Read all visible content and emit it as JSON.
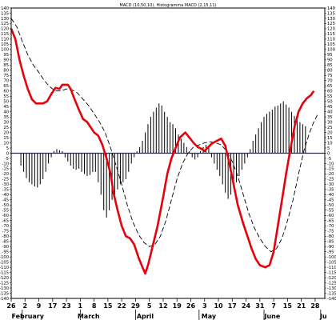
{
  "chart_data": {
    "type": "line",
    "title": "MACD (10,50,10), Histogramma MACD (2,15,11)",
    "ylim": [
      -140,
      140
    ],
    "ytick_step": 5,
    "dates": [
      "26",
      "2",
      "9",
      "17",
      "23",
      "1",
      "8",
      "15",
      "22",
      "29",
      "5",
      "12",
      "19",
      "26",
      "3",
      "10",
      "17",
      "24",
      "31",
      "7",
      "15",
      "21",
      "28"
    ],
    "months": [
      "February",
      "March",
      "April",
      "May",
      "June",
      "Ju"
    ],
    "x_range": [
      0,
      22.7
    ],
    "macd": [
      [
        0.0,
        120
      ],
      [
        0.3,
        110
      ],
      [
        0.6,
        90
      ],
      [
        0.9,
        75
      ],
      [
        1.2,
        62
      ],
      [
        1.5,
        52
      ],
      [
        1.8,
        48
      ],
      [
        2.3,
        48
      ],
      [
        2.6,
        50
      ],
      [
        2.9,
        57
      ],
      [
        3.2,
        63
      ],
      [
        3.5,
        62
      ],
      [
        3.7,
        66
      ],
      [
        4.1,
        66
      ],
      [
        4.3,
        62
      ],
      [
        4.5,
        55
      ],
      [
        4.9,
        42
      ],
      [
        5.2,
        33
      ],
      [
        5.5,
        30
      ],
      [
        5.8,
        24
      ],
      [
        6.0,
        20
      ],
      [
        6.3,
        17
      ],
      [
        6.6,
        8
      ],
      [
        6.9,
        -5
      ],
      [
        7.2,
        -20
      ],
      [
        7.4,
        -38
      ],
      [
        7.7,
        -55
      ],
      [
        8.0,
        -70
      ],
      [
        8.3,
        -80
      ],
      [
        8.6,
        -82
      ],
      [
        8.9,
        -88
      ],
      [
        9.2,
        -100
      ],
      [
        9.5,
        -110
      ],
      [
        9.7,
        -116
      ],
      [
        9.9,
        -108
      ],
      [
        10.2,
        -92
      ],
      [
        10.6,
        -70
      ],
      [
        11.0,
        -42
      ],
      [
        11.3,
        -20
      ],
      [
        11.6,
        -5
      ],
      [
        11.9,
        5
      ],
      [
        12.2,
        15
      ],
      [
        12.6,
        20
      ],
      [
        12.9,
        15
      ],
      [
        13.2,
        10
      ],
      [
        13.5,
        6
      ],
      [
        13.8,
        4
      ],
      [
        14.0,
        2
      ],
      [
        14.2,
        5
      ],
      [
        14.5,
        9
      ],
      [
        14.9,
        12
      ],
      [
        15.2,
        14
      ],
      [
        15.5,
        7
      ],
      [
        15.8,
        -10
      ],
      [
        16.1,
        -30
      ],
      [
        16.4,
        -50
      ],
      [
        16.8,
        -68
      ],
      [
        17.1,
        -80
      ],
      [
        17.4,
        -92
      ],
      [
        17.7,
        -102
      ],
      [
        18.0,
        -108
      ],
      [
        18.4,
        -110
      ],
      [
        18.7,
        -108
      ],
      [
        19.0,
        -95
      ],
      [
        19.3,
        -70
      ],
      [
        19.6,
        -45
      ],
      [
        19.9,
        -20
      ],
      [
        20.2,
        3
      ],
      [
        20.5,
        25
      ],
      [
        20.8,
        40
      ],
      [
        21.1,
        48
      ],
      [
        21.4,
        53
      ],
      [
        21.7,
        56
      ],
      [
        21.9,
        60
      ]
    ],
    "signal": [
      [
        0.0,
        130
      ],
      [
        0.4,
        122
      ],
      [
        0.8,
        108
      ],
      [
        1.2,
        95
      ],
      [
        1.6,
        85
      ],
      [
        2.0,
        78
      ],
      [
        2.4,
        70
      ],
      [
        2.8,
        64
      ],
      [
        3.2,
        60
      ],
      [
        3.6,
        60
      ],
      [
        4.0,
        62
      ],
      [
        4.4,
        61
      ],
      [
        4.8,
        58
      ],
      [
        5.2,
        52
      ],
      [
        5.6,
        46
      ],
      [
        6.0,
        38
      ],
      [
        6.4,
        30
      ],
      [
        6.8,
        20
      ],
      [
        7.2,
        5
      ],
      [
        7.6,
        -12
      ],
      [
        8.0,
        -30
      ],
      [
        8.4,
        -50
      ],
      [
        8.8,
        -66
      ],
      [
        9.2,
        -78
      ],
      [
        9.6,
        -86
      ],
      [
        10.0,
        -90
      ],
      [
        10.4,
        -88
      ],
      [
        10.8,
        -80
      ],
      [
        11.2,
        -65
      ],
      [
        11.6,
        -45
      ],
      [
        12.0,
        -25
      ],
      [
        12.4,
        -10
      ],
      [
        12.8,
        0
      ],
      [
        13.2,
        6
      ],
      [
        13.6,
        8
      ],
      [
        14.0,
        10
      ],
      [
        14.4,
        11
      ],
      [
        14.8,
        10
      ],
      [
        15.2,
        8
      ],
      [
        15.6,
        2
      ],
      [
        16.0,
        -8
      ],
      [
        16.4,
        -22
      ],
      [
        16.8,
        -40
      ],
      [
        17.2,
        -58
      ],
      [
        17.6,
        -72
      ],
      [
        18.0,
        -82
      ],
      [
        18.4,
        -90
      ],
      [
        18.8,
        -95
      ],
      [
        19.2,
        -92
      ],
      [
        19.6,
        -82
      ],
      [
        20.0,
        -65
      ],
      [
        20.4,
        -45
      ],
      [
        20.8,
        -20
      ],
      [
        21.2,
        3
      ],
      [
        21.6,
        20
      ],
      [
        21.9,
        30
      ],
      [
        22.2,
        38
      ]
    ],
    "histogram": [
      [
        0.7,
        -12
      ],
      [
        0.9,
        -18
      ],
      [
        1.1,
        -24
      ],
      [
        1.3,
        -28
      ],
      [
        1.5,
        -30
      ],
      [
        1.7,
        -32
      ],
      [
        1.9,
        -33
      ],
      [
        2.1,
        -30
      ],
      [
        2.3,
        -25
      ],
      [
        2.5,
        -18
      ],
      [
        2.7,
        -10
      ],
      [
        2.9,
        -4
      ],
      [
        3.1,
        2
      ],
      [
        3.3,
        4
      ],
      [
        3.5,
        3
      ],
      [
        3.7,
        2
      ],
      [
        3.9,
        -4
      ],
      [
        4.1,
        -8
      ],
      [
        4.3,
        -12
      ],
      [
        4.5,
        -15
      ],
      [
        4.7,
        -16
      ],
      [
        4.9,
        -15
      ],
      [
        5.1,
        -18
      ],
      [
        5.3,
        -20
      ],
      [
        5.5,
        -22
      ],
      [
        5.7,
        -21
      ],
      [
        5.9,
        -18
      ],
      [
        6.1,
        -18
      ],
      [
        6.3,
        -28
      ],
      [
        6.5,
        -40
      ],
      [
        6.7,
        -55
      ],
      [
        6.9,
        -62
      ],
      [
        7.1,
        -55
      ],
      [
        7.3,
        -45
      ],
      [
        7.5,
        -40
      ],
      [
        7.7,
        -35
      ],
      [
        7.9,
        -30
      ],
      [
        8.1,
        -28
      ],
      [
        8.3,
        -25
      ],
      [
        8.5,
        -18
      ],
      [
        8.7,
        -10
      ],
      [
        8.9,
        -4
      ],
      [
        9.1,
        2
      ],
      [
        9.3,
        6
      ],
      [
        9.5,
        12
      ],
      [
        9.7,
        20
      ],
      [
        9.9,
        28
      ],
      [
        10.1,
        35
      ],
      [
        10.3,
        40
      ],
      [
        10.5,
        44
      ],
      [
        10.7,
        48
      ],
      [
        10.9,
        46
      ],
      [
        11.1,
        40
      ],
      [
        11.3,
        35
      ],
      [
        11.5,
        30
      ],
      [
        11.7,
        28
      ],
      [
        11.9,
        24
      ],
      [
        12.1,
        18
      ],
      [
        12.3,
        14
      ],
      [
        12.5,
        10
      ],
      [
        12.7,
        6
      ],
      [
        12.9,
        2
      ],
      [
        13.1,
        -4
      ],
      [
        13.3,
        -6
      ],
      [
        13.5,
        -4
      ],
      [
        13.7,
        2
      ],
      [
        13.9,
        6
      ],
      [
        14.1,
        8
      ],
      [
        14.3,
        6
      ],
      [
        14.5,
        -4
      ],
      [
        14.7,
        -10
      ],
      [
        14.9,
        -16
      ],
      [
        15.1,
        -22
      ],
      [
        15.3,
        -30
      ],
      [
        15.5,
        -38
      ],
      [
        15.7,
        -44
      ],
      [
        15.9,
        -40
      ],
      [
        16.1,
        -34
      ],
      [
        16.3,
        -28
      ],
      [
        16.5,
        -22
      ],
      [
        16.7,
        -16
      ],
      [
        16.9,
        -10
      ],
      [
        17.1,
        -4
      ],
      [
        17.3,
        4
      ],
      [
        17.5,
        12
      ],
      [
        17.7,
        18
      ],
      [
        17.9,
        24
      ],
      [
        18.1,
        30
      ],
      [
        18.3,
        35
      ],
      [
        18.5,
        38
      ],
      [
        18.7,
        40
      ],
      [
        18.9,
        42
      ],
      [
        19.1,
        45
      ],
      [
        19.3,
        46
      ],
      [
        19.5,
        48
      ],
      [
        19.7,
        50
      ],
      [
        19.9,
        47
      ],
      [
        20.1,
        44
      ],
      [
        20.3,
        40
      ],
      [
        20.5,
        36
      ],
      [
        20.7,
        32
      ],
      [
        20.9,
        30
      ],
      [
        21.1,
        28
      ],
      [
        21.3,
        26
      ]
    ],
    "zero_line": 0,
    "colors": {
      "macd": "#e8000b",
      "signal": "#000000",
      "histogram": "#000000",
      "zero_line": "#1020c0",
      "frame": "#000000"
    }
  }
}
